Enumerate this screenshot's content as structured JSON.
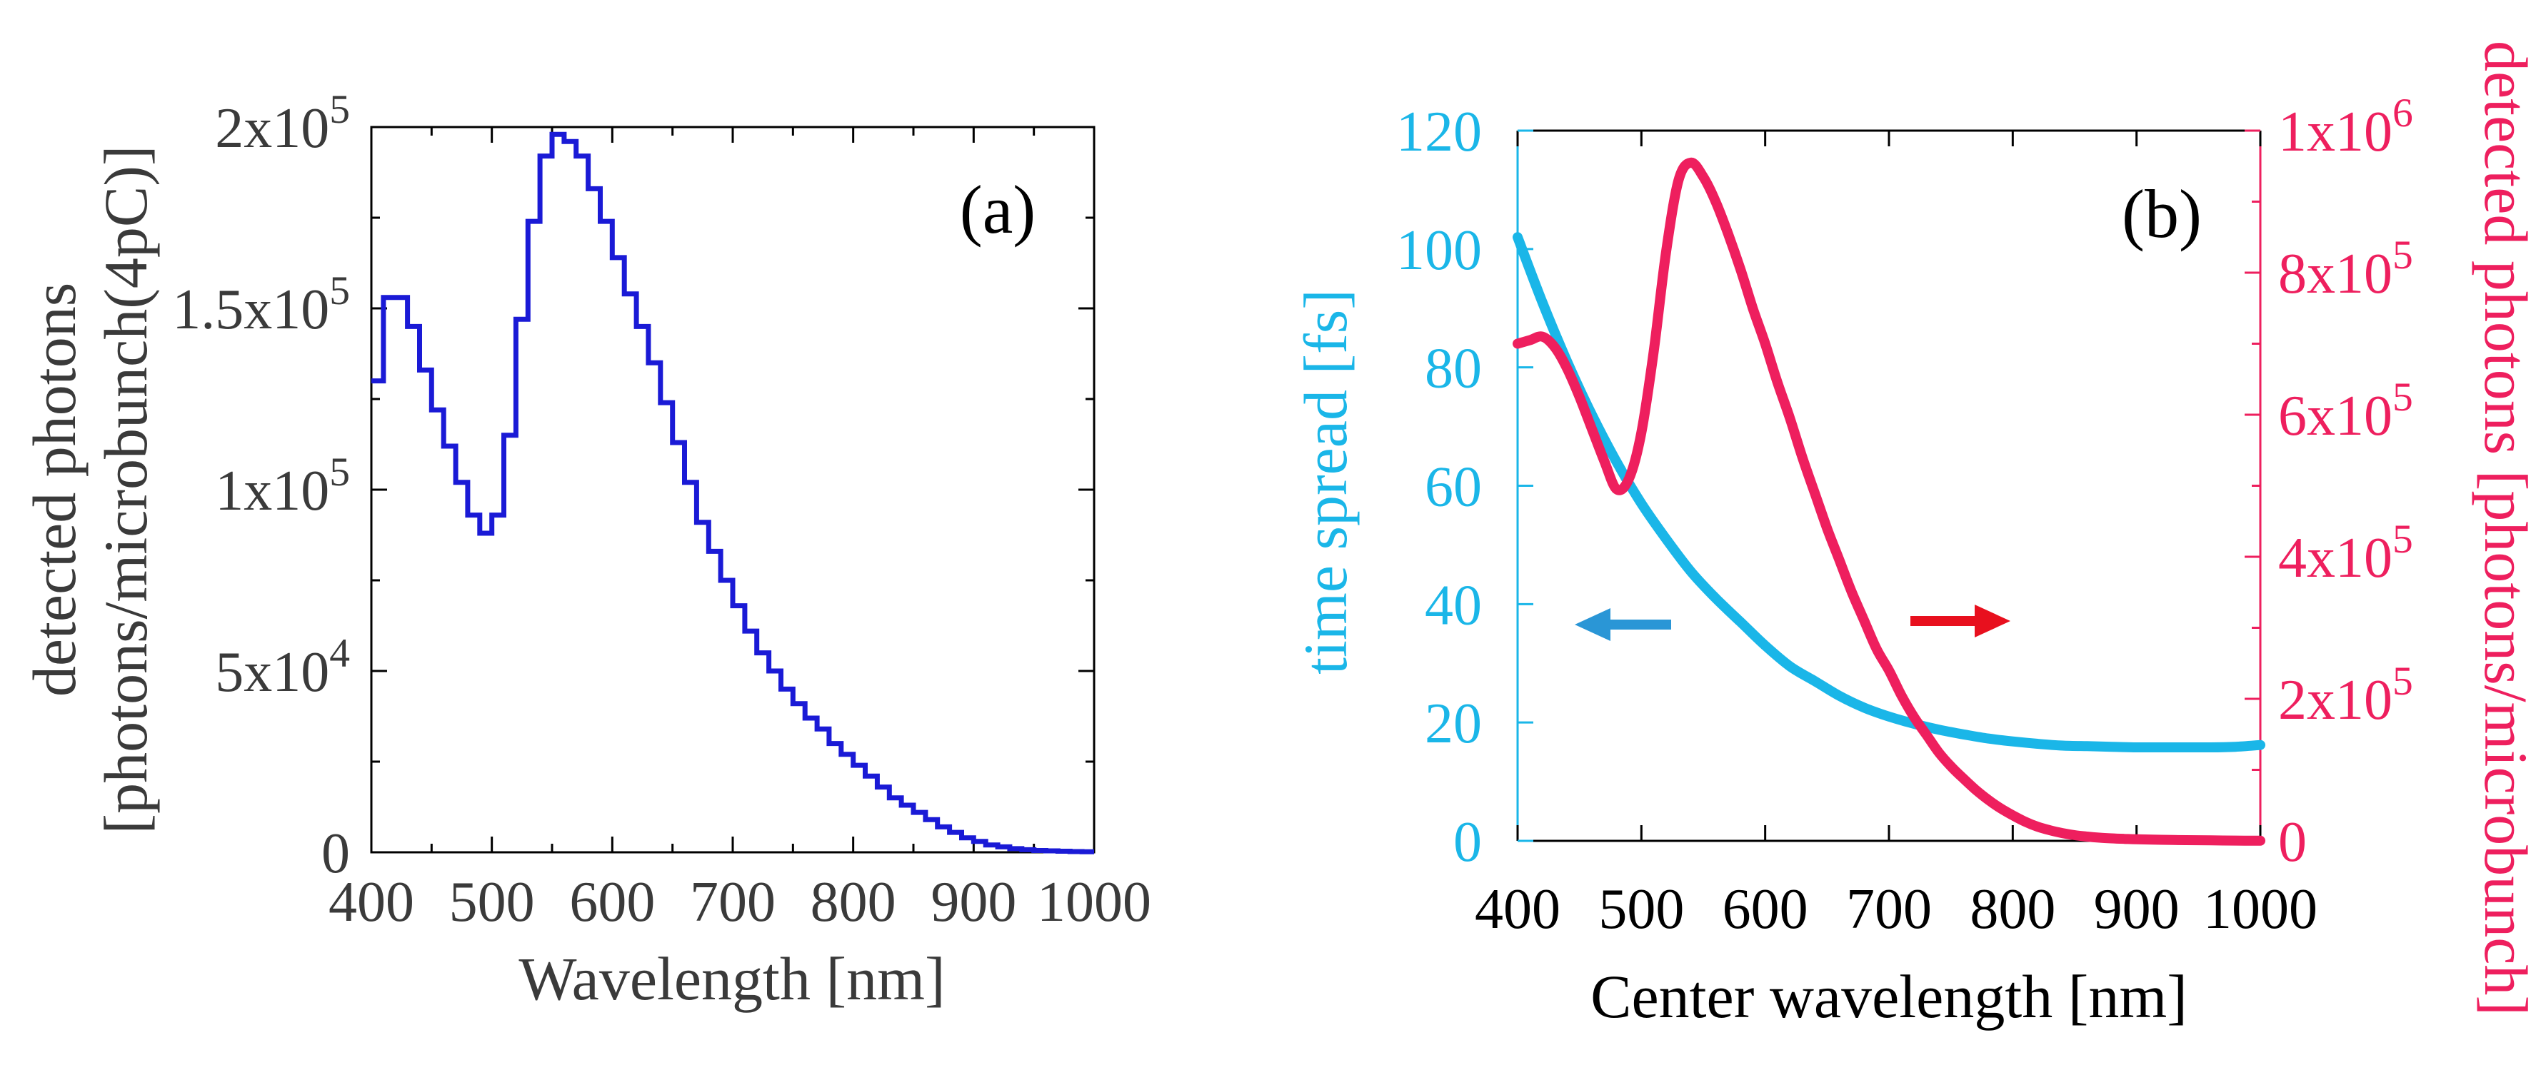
{
  "chart_data": [
    {
      "panel_label": "(a)",
      "type": "line",
      "style": "step",
      "xlabel": "Wavelength [nm]",
      "ylabel_line1": "detected photons",
      "ylabel_line2": "[photons/microbunch(4pC)]",
      "xlim": [
        400,
        1000
      ],
      "ylim": [
        0,
        200000
      ],
      "x_ticks": [
        "400",
        "500",
        "600",
        "700",
        "800",
        "900",
        "1000"
      ],
      "y_ticks": [
        {
          "mant": "0",
          "exp": ""
        },
        {
          "mant": "5x10",
          "exp": "4"
        },
        {
          "mant": "1x10",
          "exp": "5"
        },
        {
          "mant": "1.5x10",
          "exp": "5"
        },
        {
          "mant": "2x10",
          "exp": "5"
        }
      ],
      "colors": {
        "series": "#1a1ad6",
        "axis": "#000000",
        "text": "#3a3a3a"
      },
      "series": [
        {
          "name": "detected photons",
          "x": [
            400,
            410,
            420,
            430,
            440,
            450,
            460,
            470,
            480,
            490,
            500,
            510,
            520,
            530,
            540,
            550,
            560,
            570,
            580,
            590,
            600,
            610,
            620,
            630,
            640,
            650,
            660,
            670,
            680,
            690,
            700,
            710,
            720,
            730,
            740,
            750,
            760,
            770,
            780,
            790,
            800,
            810,
            820,
            830,
            840,
            850,
            860,
            870,
            880,
            890,
            900,
            910,
            920,
            930,
            940,
            950,
            960,
            970,
            980,
            990
          ],
          "values": [
            130000,
            153000,
            153000,
            145000,
            133000,
            122000,
            112000,
            102000,
            93000,
            88000,
            93000,
            115000,
            147000,
            174000,
            192000,
            198000,
            196000,
            192000,
            183000,
            174000,
            164000,
            154000,
            145000,
            135000,
            124000,
            113000,
            102000,
            91000,
            83000,
            75000,
            68000,
            61000,
            55000,
            50000,
            45000,
            41000,
            37000,
            34000,
            30000,
            27000,
            24000,
            21000,
            18000,
            15000,
            13000,
            11000,
            9000,
            7000,
            5500,
            4000,
            3000,
            2000,
            1500,
            1000,
            700,
            500,
            400,
            300,
            200,
            150
          ]
        }
      ]
    },
    {
      "panel_label": "(b)",
      "type": "line",
      "xlabel": "Center wavelength [nm]",
      "ylabel_left": "time spread [fs]",
      "ylabel_right": "detected photons [photons/microbunch]",
      "xlim": [
        400,
        1000
      ],
      "ylim_left": [
        0,
        120
      ],
      "ylim_right": [
        0,
        1000000
      ],
      "x_ticks": [
        "400",
        "500",
        "600",
        "700",
        "800",
        "900",
        "1000"
      ],
      "y_ticks_left": [
        "0",
        "20",
        "40",
        "60",
        "80",
        "100",
        "120"
      ],
      "y_ticks_right": [
        {
          "mant": "0",
          "exp": ""
        },
        {
          "mant": "2x10",
          "exp": "5"
        },
        {
          "mant": "4x10",
          "exp": "5"
        },
        {
          "mant": "6x10",
          "exp": "5"
        },
        {
          "mant": "8x10",
          "exp": "5"
        },
        {
          "mant": "1x10",
          "exp": "6"
        }
      ],
      "colors": {
        "left": "#1ab6e8",
        "right": "#ee1f5e",
        "arrow_left": "#2a96d6",
        "arrow_right": "#e8101e",
        "axis": "#000000"
      },
      "series": [
        {
          "name": "time spread",
          "axis": "left",
          "x": [
            400,
            420,
            440,
            460,
            480,
            500,
            520,
            540,
            560,
            580,
            600,
            620,
            640,
            660,
            680,
            700,
            720,
            740,
            760,
            780,
            800,
            820,
            840,
            860,
            880,
            900,
            920,
            940,
            960,
            980,
            1000
          ],
          "values": [
            102,
            91,
            81,
            72,
            64,
            57,
            51,
            45.5,
            41,
            37,
            33,
            29.5,
            27,
            24.5,
            22.5,
            21,
            19.8,
            18.8,
            18,
            17.3,
            16.8,
            16.4,
            16.1,
            16,
            15.9,
            15.8,
            15.8,
            15.8,
            15.8,
            15.9,
            16.2
          ]
        },
        {
          "name": "detected photons",
          "axis": "right",
          "x": [
            400,
            410,
            420,
            430,
            440,
            450,
            460,
            470,
            480,
            490,
            500,
            510,
            520,
            530,
            540,
            550,
            560,
            570,
            580,
            590,
            600,
            610,
            620,
            630,
            640,
            650,
            660,
            670,
            680,
            690,
            700,
            710,
            720,
            730,
            740,
            750,
            760,
            770,
            780,
            790,
            800,
            810,
            820,
            830,
            840,
            850,
            860,
            870,
            880,
            890,
            900,
            920,
            940,
            960,
            980,
            1000
          ],
          "values": [
            700000,
            705000,
            710000,
            695000,
            665000,
            625000,
            580000,
            535000,
            495000,
            510000,
            575000,
            690000,
            830000,
            930000,
            955000,
            935000,
            900000,
            855000,
            805000,
            750000,
            700000,
            645000,
            595000,
            540000,
            490000,
            440000,
            395000,
            350000,
            310000,
            270000,
            240000,
            205000,
            175000,
            150000,
            125000,
            105000,
            88000,
            72000,
            58000,
            46000,
            36000,
            27000,
            20000,
            15000,
            11000,
            8000,
            6000,
            4500,
            3500,
            2800,
            2200,
            1500,
            1000,
            700,
            400,
            200
          ]
        }
      ]
    }
  ]
}
